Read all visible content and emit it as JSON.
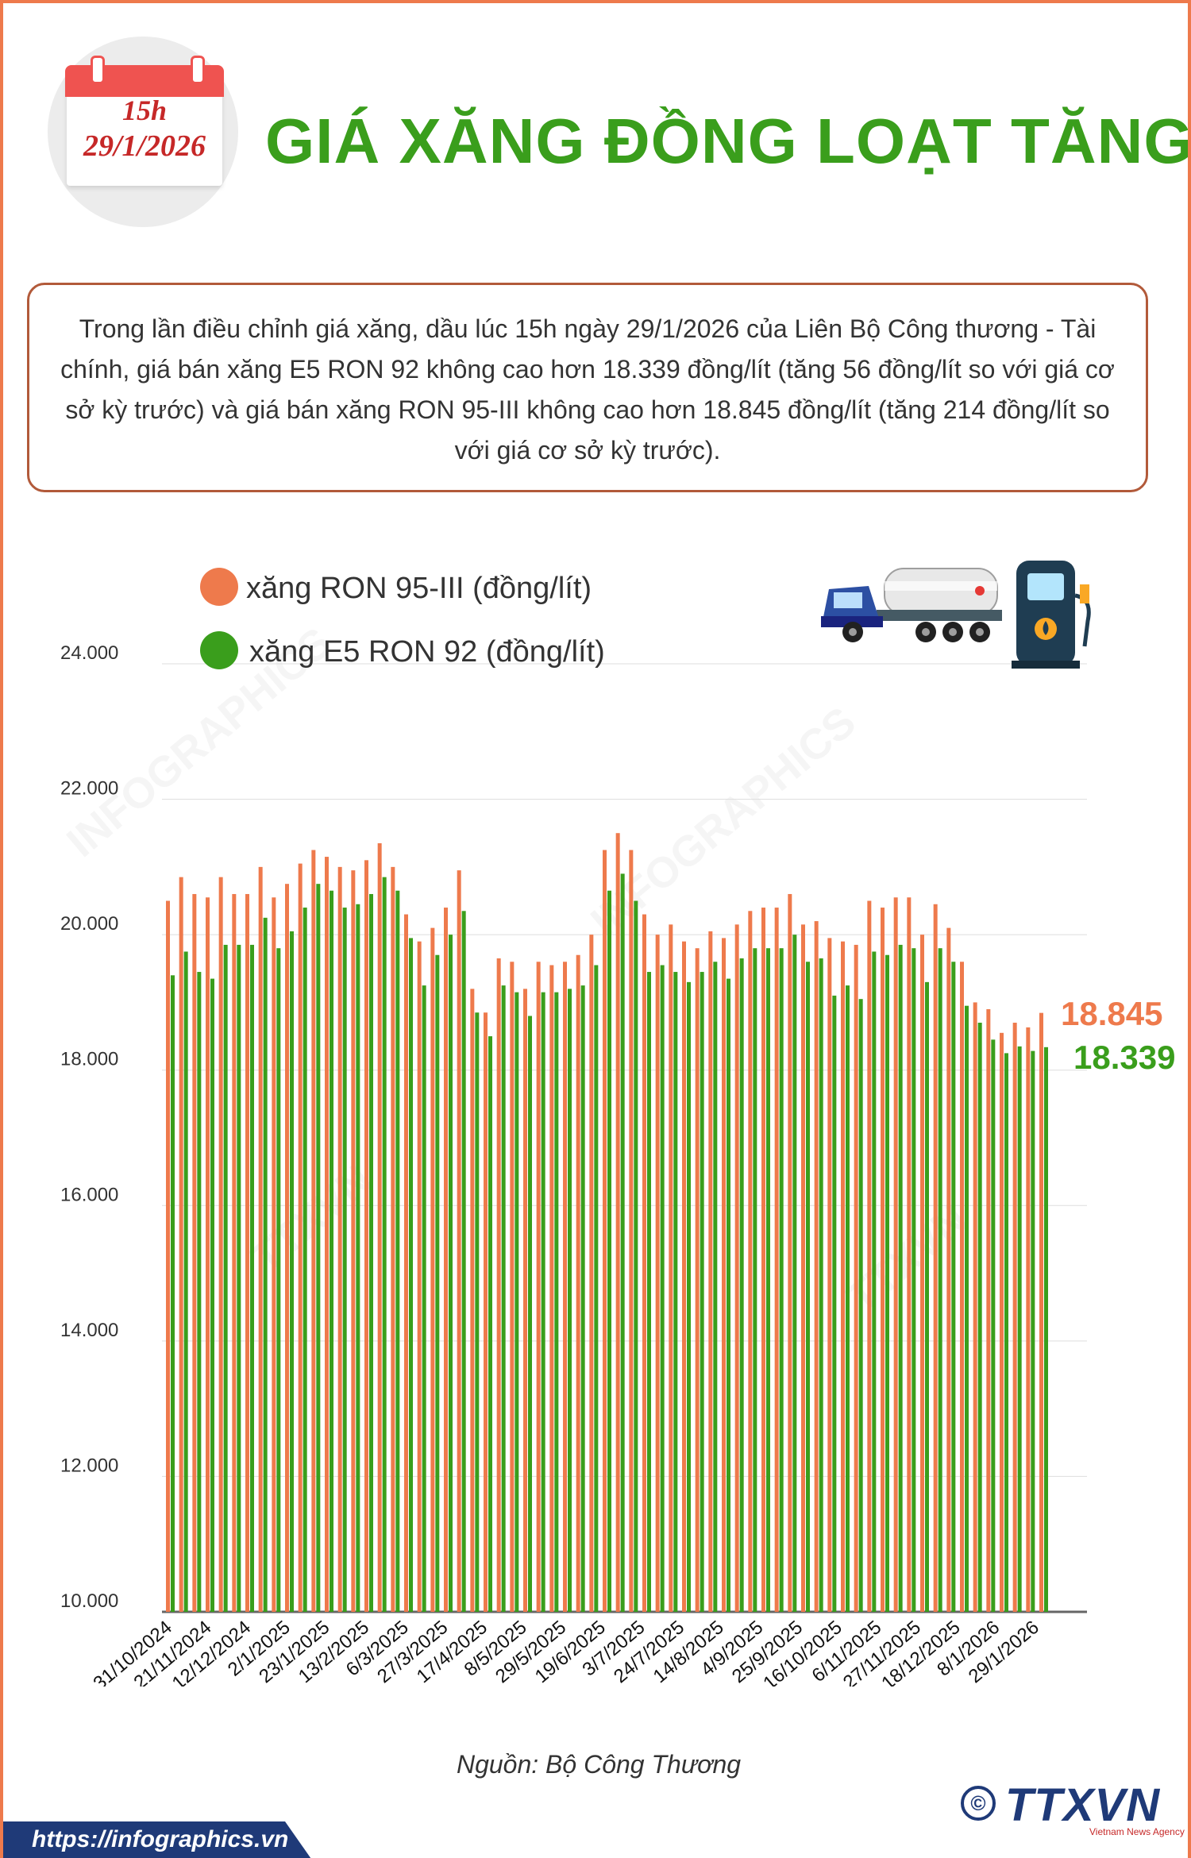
{
  "header": {
    "calendar_time": "15h",
    "calendar_date": "29/1/2026",
    "title": "GIÁ XĂNG ĐỒNG LOẠT TĂNG"
  },
  "info": {
    "text": "Trong lần điều chỉnh giá xăng, dầu lúc 15h ngày 29/1/2026 của Liên Bộ Công thương - Tài chính, giá bán xăng E5 RON 92 không cao hơn 18.339 đồng/lít (tăng 56 đồng/lít so với giá cơ sở kỳ trước) và giá bán xăng RON 95-III không cao hơn 18.845 đồng/lít (tăng 214 đồng/lít so với giá cơ sở kỳ trước)."
  },
  "colors": {
    "ron95": "#ee7a4c",
    "e5": "#3a9e1c",
    "title": "#3a9e1c",
    "border": "#ee7a4c",
    "brand": "#1f3a78"
  },
  "icons": {
    "truck": "tanker-truck-icon",
    "pump": "fuel-pump-icon",
    "calendar": "calendar-icon"
  },
  "chart_data": {
    "type": "bar",
    "ylim": [
      10000,
      24000
    ],
    "yticks": [
      "10.000",
      "12.000",
      "14.000",
      "16.000",
      "18.000",
      "20.000",
      "22.000",
      "24.000"
    ],
    "grid": true,
    "legend": "top-left",
    "x_tick_labels": [
      "31/10/2024",
      "21/11/2024",
      "12/12/2024",
      "2/1/2025",
      "23/1/2025",
      "13/2/2025",
      "6/3/2025",
      "27/3/2025",
      "17/4/2025",
      "8/5/2025",
      "29/5/2025",
      "19/6/2025",
      "3/7/2025",
      "24/7/2025",
      "14/8/2025",
      "4/9/2025",
      "25/9/2025",
      "16/10/2025",
      "6/11/2025",
      "27/11/2025",
      "18/12/2025",
      "8/1/2026",
      "29/1/2026"
    ],
    "series": [
      {
        "name": "xăng RON 95-III (đồng/lít)",
        "values": [
          20500,
          20850,
          20600,
          20550,
          20850,
          20600,
          20600,
          21000,
          20550,
          20750,
          21050,
          21250,
          21150,
          21000,
          20950,
          21100,
          21350,
          21000,
          20300,
          19900,
          20100,
          20400,
          20950,
          19200,
          18850,
          19650,
          19600,
          19200,
          19600,
          19550,
          19600,
          19700,
          20000,
          21250,
          21500,
          21250,
          20300,
          20000,
          20150,
          19900,
          19800,
          20050,
          19950,
          20150,
          20350,
          20400,
          20400,
          20600,
          20150,
          20200,
          19950,
          19900,
          19850,
          20500,
          20400,
          20550,
          20550,
          20000,
          20450,
          20100,
          19600,
          19000,
          18900,
          18550,
          18700,
          18631,
          18845
        ]
      },
      {
        "name": "xăng E5 RON 92 (đồng/lít)",
        "values": [
          19400,
          19750,
          19450,
          19350,
          19850,
          19850,
          19850,
          20250,
          19800,
          20050,
          20400,
          20750,
          20650,
          20400,
          20450,
          20600,
          20850,
          20650,
          19950,
          19250,
          19700,
          20000,
          20350,
          18850,
          18500,
          19250,
          19150,
          18800,
          19150,
          19150,
          19200,
          19250,
          19550,
          20650,
          20900,
          20500,
          19450,
          19550,
          19450,
          19300,
          19450,
          19600,
          19350,
          19650,
          19800,
          19800,
          19800,
          20000,
          19600,
          19650,
          19100,
          19250,
          19050,
          19750,
          19700,
          19850,
          19800,
          19300,
          19800,
          19600,
          18950,
          18700,
          18450,
          18250,
          18350,
          18283,
          18339
        ]
      }
    ],
    "annotations": [
      "18.845",
      "18.339"
    ]
  },
  "source": "Nguồn: Bộ Công Thương",
  "footer": {
    "url": "https://infographics.vn",
    "brand": "TTXVN",
    "brand_sub": "Vietnam News Agency",
    "copyright": "©"
  }
}
